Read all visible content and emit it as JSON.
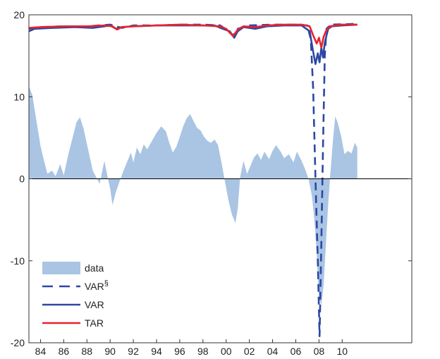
{
  "chart_data": {
    "type": "area",
    "title": "",
    "xlabel": "",
    "ylabel": "",
    "xlim": [
      1983,
      2016
    ],
    "ylim": [
      -20,
      20
    ],
    "x_tick_values": [
      1984,
      1986,
      1988,
      1990,
      1992,
      1994,
      1996,
      1998,
      2000,
      2002,
      2004,
      2006,
      2008,
      2010
    ],
    "x_tick_labels": [
      "84",
      "86",
      "88",
      "90",
      "92",
      "94",
      "96",
      "98",
      "00",
      "02",
      "04",
      "06",
      "08",
      "10"
    ],
    "y_tick_values": [
      -20,
      -10,
      0,
      10,
      20
    ],
    "y_tick_labels": [
      "-20",
      "-10",
      "0",
      "10",
      "20"
    ],
    "zero_line": true,
    "grid": false,
    "legend": {
      "position": "bottom-left",
      "entries": [
        "data",
        "VAR§",
        "VAR",
        "TAR"
      ]
    },
    "colors": {
      "data": "#a9c5e3",
      "var_dashed": "#2d47a3",
      "var": "#2d47a3",
      "tar": "#e8232d",
      "zero_line": "#000000",
      "axis": "#333333"
    },
    "series": [
      {
        "name": "data",
        "kind": "area",
        "points": [
          [
            1983.0,
            11.3
          ],
          [
            1983.3,
            10.2
          ],
          [
            1983.6,
            7.5
          ],
          [
            1984.0,
            4.0
          ],
          [
            1984.3,
            2.2
          ],
          [
            1984.6,
            0.6
          ],
          [
            1985.0,
            1.0
          ],
          [
            1985.3,
            0.3
          ],
          [
            1985.7,
            1.8
          ],
          [
            1986.0,
            0.4
          ],
          [
            1986.4,
            3.0
          ],
          [
            1986.8,
            5.2
          ],
          [
            1987.1,
            6.9
          ],
          [
            1987.4,
            7.5
          ],
          [
            1987.7,
            6.2
          ],
          [
            1988.1,
            3.6
          ],
          [
            1988.5,
            1.0
          ],
          [
            1988.8,
            0.2
          ],
          [
            1989.1,
            -0.6
          ],
          [
            1989.5,
            2.2
          ],
          [
            1989.8,
            0.1
          ],
          [
            1990.0,
            -1.2
          ],
          [
            1990.2,
            -3.2
          ],
          [
            1990.5,
            -1.6
          ],
          [
            1990.8,
            -0.4
          ],
          [
            1991.1,
            0.8
          ],
          [
            1991.5,
            2.2
          ],
          [
            1991.8,
            3.2
          ],
          [
            1992.0,
            2.0
          ],
          [
            1992.3,
            3.8
          ],
          [
            1992.6,
            3.0
          ],
          [
            1992.9,
            4.2
          ],
          [
            1993.2,
            3.6
          ],
          [
            1993.6,
            4.6
          ],
          [
            1994.0,
            5.6
          ],
          [
            1994.4,
            6.4
          ],
          [
            1994.8,
            5.8
          ],
          [
            1995.1,
            4.4
          ],
          [
            1995.4,
            3.2
          ],
          [
            1995.7,
            3.9
          ],
          [
            1996.0,
            5.1
          ],
          [
            1996.3,
            6.4
          ],
          [
            1996.6,
            7.4
          ],
          [
            1996.9,
            7.9
          ],
          [
            1997.2,
            7.0
          ],
          [
            1997.5,
            6.2
          ],
          [
            1997.8,
            5.9
          ],
          [
            1998.1,
            5.1
          ],
          [
            1998.4,
            4.6
          ],
          [
            1998.7,
            4.4
          ],
          [
            1999.0,
            4.8
          ],
          [
            1999.3,
            4.1
          ],
          [
            1999.6,
            2.0
          ],
          [
            1999.9,
            -0.4
          ],
          [
            2000.2,
            -2.6
          ],
          [
            2000.5,
            -4.4
          ],
          [
            2000.8,
            -5.4
          ],
          [
            2001.0,
            -3.6
          ],
          [
            2001.2,
            0.2
          ],
          [
            2001.5,
            2.2
          ],
          [
            2001.8,
            0.6
          ],
          [
            2002.1,
            1.6
          ],
          [
            2002.4,
            2.6
          ],
          [
            2002.7,
            3.1
          ],
          [
            2003.0,
            2.3
          ],
          [
            2003.3,
            3.3
          ],
          [
            2003.7,
            2.4
          ],
          [
            2004.0,
            3.4
          ],
          [
            2004.3,
            4.1
          ],
          [
            2004.7,
            3.3
          ],
          [
            2005.0,
            2.5
          ],
          [
            2005.4,
            3.0
          ],
          [
            2005.8,
            2.0
          ],
          [
            2006.1,
            3.3
          ],
          [
            2006.5,
            2.2
          ],
          [
            2006.8,
            1.2
          ],
          [
            2007.1,
            0.0
          ],
          [
            2007.4,
            -2.2
          ],
          [
            2007.6,
            -5.0
          ],
          [
            2007.8,
            -9.0
          ],
          [
            2008.0,
            -14.5
          ],
          [
            2008.2,
            -15.4
          ],
          [
            2008.4,
            -13.0
          ],
          [
            2008.6,
            -8.0
          ],
          [
            2008.8,
            -3.0
          ],
          [
            2009.0,
            1.0
          ],
          [
            2009.2,
            4.6
          ],
          [
            2009.4,
            7.6
          ],
          [
            2009.6,
            6.9
          ],
          [
            2009.9,
            5.3
          ],
          [
            2010.2,
            3.0
          ],
          [
            2010.5,
            3.4
          ],
          [
            2010.8,
            3.1
          ],
          [
            2011.1,
            4.4
          ],
          [
            2011.3,
            3.8
          ]
        ]
      },
      {
        "name": "VAR§",
        "kind": "dashed-line",
        "points": [
          [
            1983.0,
            18.3
          ],
          [
            1984.0,
            18.5
          ],
          [
            1986.0,
            18.6
          ],
          [
            1988.0,
            18.6
          ],
          [
            1990.0,
            18.8
          ],
          [
            1991.0,
            18.4
          ],
          [
            1992.0,
            18.7
          ],
          [
            1994.0,
            18.7
          ],
          [
            1996.0,
            18.8
          ],
          [
            1998.0,
            18.8
          ],
          [
            1999.5,
            18.7
          ],
          [
            2000.0,
            18.2
          ],
          [
            2000.6,
            17.5
          ],
          [
            2001.0,
            18.3
          ],
          [
            2002.0,
            18.7
          ],
          [
            2004.0,
            18.8
          ],
          [
            2006.0,
            18.8
          ],
          [
            2007.0,
            18.7
          ],
          [
            2007.3,
            17.0
          ],
          [
            2007.5,
            11.0
          ],
          [
            2007.7,
            0.0
          ],
          [
            2007.9,
            -10.0
          ],
          [
            2008.05,
            -19.2
          ],
          [
            2008.2,
            -8.0
          ],
          [
            2008.35,
            4.0
          ],
          [
            2008.5,
            15.0
          ],
          [
            2008.65,
            18.3
          ],
          [
            2009.0,
            18.8
          ],
          [
            2011.3,
            18.9
          ]
        ]
      },
      {
        "name": "VAR",
        "kind": "line",
        "points": [
          [
            1983.0,
            18.0
          ],
          [
            1983.5,
            18.3
          ],
          [
            1985.0,
            18.4
          ],
          [
            1987.0,
            18.5
          ],
          [
            1988.5,
            18.4
          ],
          [
            1989.5,
            18.6
          ],
          [
            1990.0,
            18.7
          ],
          [
            1990.5,
            18.3
          ],
          [
            1991.0,
            18.5
          ],
          [
            1992.0,
            18.6
          ],
          [
            1994.0,
            18.7
          ],
          [
            1996.0,
            18.7
          ],
          [
            1998.0,
            18.7
          ],
          [
            1999.0,
            18.7
          ],
          [
            1999.7,
            18.3
          ],
          [
            2000.3,
            18.0
          ],
          [
            2000.7,
            17.2
          ],
          [
            2001.0,
            18.0
          ],
          [
            2001.5,
            18.5
          ],
          [
            2002.5,
            18.3
          ],
          [
            2003.5,
            18.6
          ],
          [
            2005.0,
            18.7
          ],
          [
            2006.5,
            18.7
          ],
          [
            2007.2,
            18.0
          ],
          [
            2007.5,
            15.5
          ],
          [
            2007.7,
            14.0
          ],
          [
            2007.9,
            15.3
          ],
          [
            2008.05,
            14.2
          ],
          [
            2008.2,
            16.0
          ],
          [
            2008.35,
            14.8
          ],
          [
            2008.5,
            16.6
          ],
          [
            2008.65,
            17.5
          ],
          [
            2008.8,
            18.3
          ],
          [
            2009.1,
            18.6
          ],
          [
            2010.0,
            18.7
          ],
          [
            2011.3,
            18.8
          ]
        ]
      },
      {
        "name": "TAR",
        "kind": "line",
        "points": [
          [
            1983.0,
            18.4
          ],
          [
            1984.0,
            18.5
          ],
          [
            1986.0,
            18.6
          ],
          [
            1988.0,
            18.6
          ],
          [
            1989.5,
            18.7
          ],
          [
            1990.2,
            18.6
          ],
          [
            1990.6,
            18.2
          ],
          [
            1991.0,
            18.5
          ],
          [
            1992.0,
            18.6
          ],
          [
            1994.0,
            18.7
          ],
          [
            1996.0,
            18.8
          ],
          [
            1998.0,
            18.7
          ],
          [
            1999.5,
            18.6
          ],
          [
            2000.0,
            18.3
          ],
          [
            2000.6,
            17.4
          ],
          [
            2001.0,
            18.2
          ],
          [
            2001.5,
            18.6
          ],
          [
            2002.5,
            18.5
          ],
          [
            2003.5,
            18.7
          ],
          [
            2005.0,
            18.8
          ],
          [
            2006.5,
            18.8
          ],
          [
            2007.2,
            18.6
          ],
          [
            2007.5,
            17.5
          ],
          [
            2007.8,
            16.5
          ],
          [
            2008.0,
            17.2
          ],
          [
            2008.2,
            16.0
          ],
          [
            2008.4,
            17.3
          ],
          [
            2008.6,
            18.0
          ],
          [
            2008.9,
            18.6
          ],
          [
            2010.0,
            18.8
          ],
          [
            2011.3,
            18.8
          ]
        ]
      }
    ]
  }
}
